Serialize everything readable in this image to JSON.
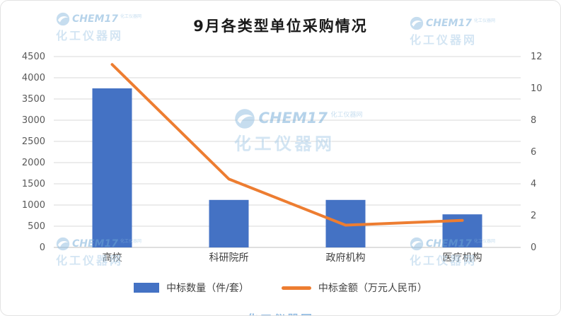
{
  "title": "9月各类型单位采购情况",
  "watermark": {
    "brand": "CHEM17",
    "tagline": "化工仪器网",
    "site_name": "化工仪器网"
  },
  "chart_data": {
    "type": "bar+line combo",
    "title": "9月各类型单位采购情况",
    "categories": [
      "高校",
      "科研院所",
      "政府机构",
      "医疗机构"
    ],
    "series": [
      {
        "name": "中标数量（件/套）",
        "type": "bar",
        "axis": "left",
        "color": "#4472C4",
        "values": [
          3750,
          1120,
          1120,
          780
        ]
      },
      {
        "name": "中标金额（万元人民币）",
        "type": "line",
        "axis": "right",
        "color": "#ED7D31",
        "values": [
          11.5,
          4.3,
          1.4,
          1.7
        ]
      }
    ],
    "left_axis": {
      "min": 0,
      "max": 4500,
      "step": 500
    },
    "right_axis": {
      "min": 0,
      "max": 12,
      "step": 2
    },
    "grid": true,
    "legend_position": "bottom"
  },
  "legend": {
    "items": [
      {
        "label": "中标数量（件/套）",
        "swatch": "bar",
        "color": "#4472C4"
      },
      {
        "label": "中标金额（万元人民币）",
        "swatch": "line",
        "color": "#ED7D31"
      }
    ]
  },
  "colors": {
    "bar": "#4472C4",
    "line": "#ED7D31",
    "grid": "#D9D9D9",
    "axis_zero_line": "#BFBFBF",
    "axis_text": "#595959",
    "category_text": "#404040",
    "title_text": "#1A1A1A",
    "watermark_blue": "#9DC3E6"
  }
}
